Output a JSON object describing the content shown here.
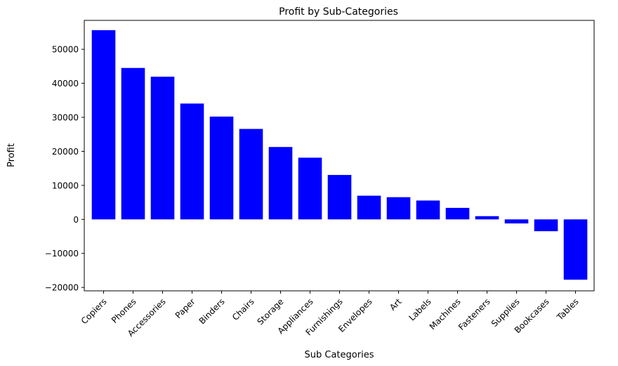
{
  "chart_data": {
    "type": "bar",
    "title": "Profit by Sub-Categories",
    "xlabel": "Sub Categories",
    "ylabel": "Profit",
    "categories": [
      "Copiers",
      "Phones",
      "Accessories",
      "Paper",
      "Binders",
      "Chairs",
      "Storage",
      "Appliances",
      "Furnishings",
      "Envelopes",
      "Art",
      "Labels",
      "Machines",
      "Fasteners",
      "Supplies",
      "Bookcases",
      "Tables"
    ],
    "values": [
      55618,
      44516,
      41937,
      34054,
      30222,
      26590,
      21279,
      18138,
      13059,
      6964,
      6528,
      5546,
      3385,
      950,
      -1189,
      -3473,
      -17725
    ],
    "yticks": [
      -20000,
      -10000,
      0,
      10000,
      20000,
      30000,
      40000,
      50000
    ],
    "ylim": [
      -21000,
      58500
    ],
    "bar_color": "#0000ff",
    "grid": false,
    "legend": "none"
  }
}
